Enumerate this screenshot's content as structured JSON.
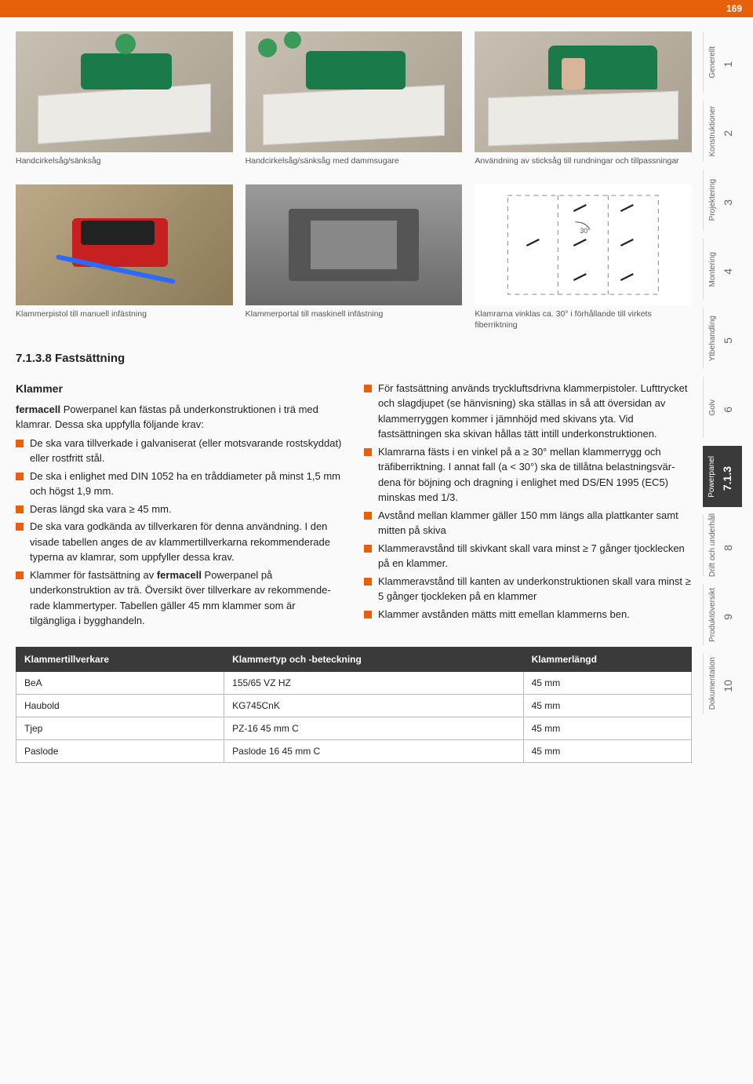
{
  "page_number": "169",
  "images_row1": [
    {
      "caption": "Handcirkelsåg/sänksåg"
    },
    {
      "caption": "Handcirkelsåg/sänksåg med dammsugare"
    },
    {
      "caption": "Användning av sticksåg till rundningar och tillpassningar"
    }
  ],
  "images_row2": [
    {
      "caption": "Klammerpistol till manuell infästning"
    },
    {
      "caption": "Klammerportal till maskinell infästning"
    },
    {
      "caption": "Klamrarna vinklas ca. 30° i förhållande till virkets fiberriktning"
    }
  ],
  "diagram": {
    "angle_label": "30°"
  },
  "section_heading": "7.1.3.8 Fastsättning",
  "sub_heading": "Klammer",
  "para1_a": "fermacell",
  "para1_b": " Powerpanel kan fästas på underkonstruktionen i trä med klamrar. Dessa ska uppfylla följande krav:",
  "left_bullets": [
    "De ska vara tillverkade i galvaniserat (eller motsvarande rostskyddat) eller rostfritt stål.",
    "De ska i enlighet med DIN 1052 ha en tråd­diameter på minst 1,5 mm och högst 1,9 mm.",
    "Deras längd ska vara ≥ 45 mm.",
    "De ska vara godkända av tillverkaren för denna användning. I den visade tabellen anges de av klammertillverkarna re­kommenderade typerna av klamrar, som uppfyller dessa krav."
  ],
  "left_bullet5_a": "Klammer för fastsättning av ",
  "left_bullet5_b": "fermacell",
  "left_bullet5_c": " Powerpanel på underkonstruktion av trä. Översikt över tillverkare av rekommende­rade klammertyper. Tabellen gäller 45 mm klammer som är tilgängliga i bygghandeln.",
  "right_bullets": [
    "För fastsättning används tryckluftsdriv­na klammerpistoler. Lufttrycket och slagdjupet (se hänvisning) ska ställas in så att översidan av klammerryggen kommer i jämnhöjd med skivans yta. Vid fastsättningen ska skivan hållas tätt intill underkonstruktionen.",
    "Klamrarna fästs i en vinkel på a ≥ 30° mellan klammerrygg och träfiberriktning. I annat fall (a < 30°) ska de tillåtna belastningsvär­dena för böjning och dragning i enlighet med DS/EN 1995 (EC5) minskas med 1/3.",
    "Avstånd mellan klammer gäller 150 mm längs alla plattkanter samt mitten på skiva",
    "Klammeravstånd till skivkant skall vara minst ≥ 7 gånger tjocklecken på en klammer.",
    "Klammeravstånd till kanten av underkon­struktionen skall vara minst ≥ 5 gånger tjockleken på en klammer",
    "Klammer avstånden mätts mitt emellan klammerns ben."
  ],
  "table": {
    "headers": [
      "Klammertillverkare",
      "Klammertyp och -beteckning",
      "Klammerlängd"
    ],
    "rows": [
      [
        "BeA",
        "155/65 VZ HZ",
        "45 mm"
      ],
      [
        "Haubold",
        "KG745CnK",
        "45 mm"
      ],
      [
        "Tjep",
        "PZ-16 45 mm C",
        "45 mm"
      ],
      [
        "Paslode",
        "Paslode 16 45 mm C",
        "45 mm"
      ]
    ]
  },
  "side_tabs": [
    {
      "num": "1",
      "label": "Generellt"
    },
    {
      "num": "2",
      "label": "Konstruktioner"
    },
    {
      "num": "3",
      "label": "Projektering"
    },
    {
      "num": "4",
      "label": "Montering"
    },
    {
      "num": "5",
      "label": "Ytbehandling"
    },
    {
      "num": "6",
      "label": "Golv"
    },
    {
      "num": "7.1.3",
      "label": "Powerpanel",
      "active": true
    },
    {
      "num": "8",
      "label": "Drift och underhåll"
    },
    {
      "num": "9",
      "label": "Produktöversikt"
    },
    {
      "num": "10",
      "label": "Dokumentation"
    }
  ],
  "colors": {
    "accent": "#e8600a",
    "dark": "#3a3a3a"
  }
}
